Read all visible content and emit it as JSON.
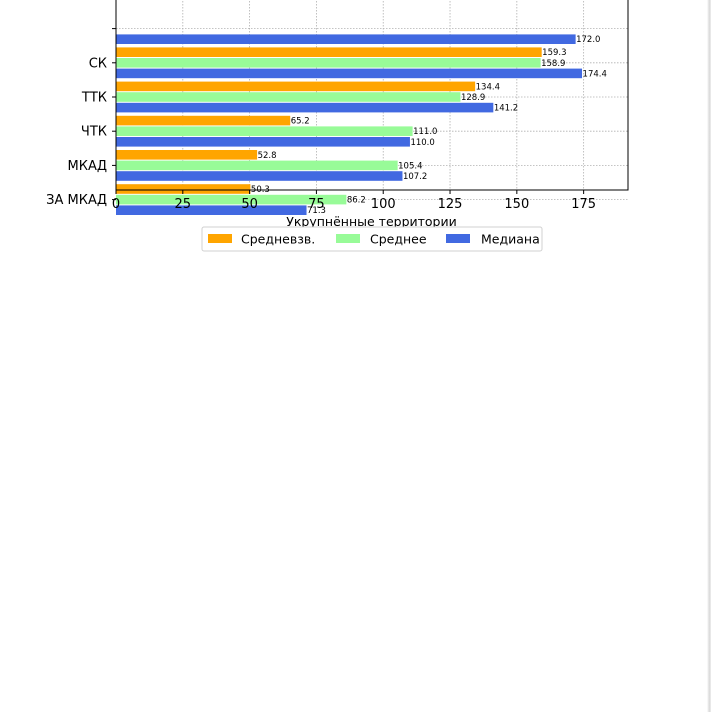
{
  "chart_data": {
    "type": "bar",
    "orientation": "horizontal",
    "categories": [
      "",
      "СК",
      "ТТК",
      "ЧТК",
      "МКАД",
      "ЗА МКАД"
    ],
    "series": [
      {
        "name": "Средневзв.",
        "color": "#ffa500",
        "values": [
          null,
          159.3,
          134.4,
          65.2,
          52.8,
          50.3
        ]
      },
      {
        "name": "Среднее",
        "color": "#98fb98",
        "values": [
          null,
          158.9,
          128.9,
          111.0,
          105.4,
          86.2
        ]
      },
      {
        "name": "Медиана",
        "color": "#4169e1",
        "values": [
          172.0,
          174.4,
          141.2,
          110.0,
          107.2,
          71.3
        ]
      }
    ],
    "xlabel": "Укрупнённые территории",
    "ylabel": "",
    "xlim": [
      0,
      191.6
    ],
    "xticks": [
      0,
      25,
      50,
      75,
      100,
      125,
      150,
      175
    ],
    "grid": true,
    "legend_placement": "bottom-center",
    "legend_columns": 3
  }
}
